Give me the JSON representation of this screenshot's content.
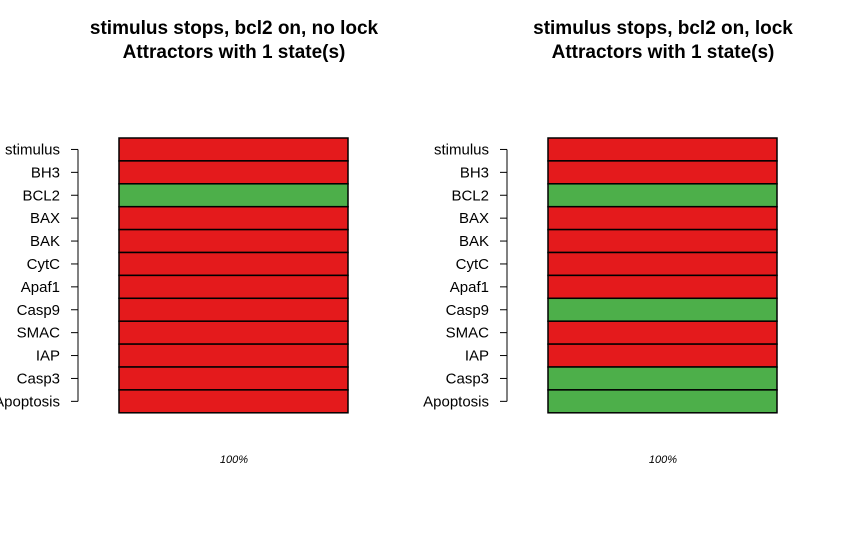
{
  "colors": {
    "on": "#4daf4a",
    "off": "#e41a1c",
    "border": "#000000"
  },
  "chart_data": [
    {
      "type": "heatmap",
      "title": "stimulus stops, bcl2 on, no lock",
      "subtitle": "Attractors with 1 state(s)",
      "genes": [
        "stimulus",
        "BH3",
        "BCL2",
        "BAX",
        "BAK",
        "CytC",
        "Apaf1",
        "Casp9",
        "SMAC",
        "IAP",
        "Casp3",
        "Apoptosis"
      ],
      "columns": [
        {
          "frequency_label": "100%",
          "states": [
            0,
            0,
            1,
            0,
            0,
            0,
            0,
            0,
            0,
            0,
            0,
            0
          ]
        }
      ]
    },
    {
      "type": "heatmap",
      "title": "stimulus stops, bcl2 on, lock",
      "subtitle": "Attractors with 1 state(s)",
      "genes": [
        "stimulus",
        "BH3",
        "BCL2",
        "BAX",
        "BAK",
        "CytC",
        "Apaf1",
        "Casp9",
        "SMAC",
        "IAP",
        "Casp3",
        "Apoptosis"
      ],
      "columns": [
        {
          "frequency_label": "100%",
          "states": [
            0,
            0,
            1,
            0,
            0,
            0,
            0,
            1,
            0,
            0,
            1,
            1
          ]
        }
      ]
    }
  ]
}
